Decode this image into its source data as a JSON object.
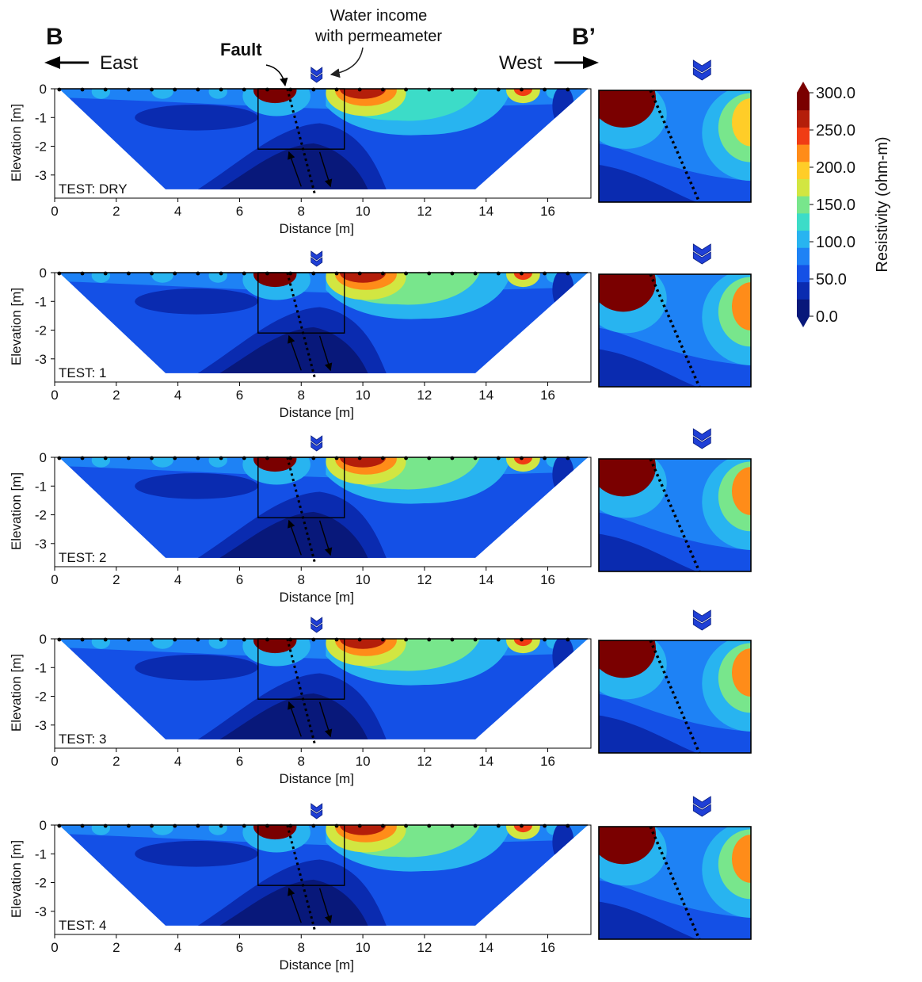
{
  "figure": {
    "section_start_label": "B",
    "section_end_label": "B’",
    "direction_left": "East",
    "direction_right": "West",
    "fault_label": "Fault",
    "water_label_line1": "Water income",
    "water_label_line2": "with permeameter"
  },
  "colorbar": {
    "title": "Resistivity (ohm-m)",
    "tick_labels": [
      "300.0",
      "250.0",
      "200.0",
      "150.0",
      "100.0",
      "50.0",
      "0.0"
    ],
    "colors": [
      "#08187a",
      "#0a2bb0",
      "#1450e6",
      "#1e82f5",
      "#28b4f0",
      "#3cdcc8",
      "#78e68c",
      "#d2e641",
      "#ffcd28",
      "#ff8c19",
      "#f03c14",
      "#b41e0a",
      "#7a0000"
    ]
  },
  "chart_data": {
    "type": "heatmap",
    "quantity": "Electrical resistivity tomography section (ohm-m)",
    "xlabel": "Distance [m]",
    "ylabel": "Elevation [m]",
    "xlim": [
      0,
      17.4
    ],
    "ylim": [
      -3.75,
      0
    ],
    "x_ticks": [
      "0",
      "2",
      "4",
      "6",
      "8",
      "10",
      "12",
      "14",
      "16"
    ],
    "y_ticks": [
      "0",
      "-1",
      "-2",
      "-3"
    ],
    "color_range": [
      0,
      300
    ],
    "zoom_window": {
      "x_range": [
        6.6,
        9.4
      ],
      "y_range": [
        -2.1,
        0
      ]
    },
    "fault_line": {
      "top": [
        7.55,
        0
      ],
      "bottom": [
        8.45,
        -3.7
      ]
    },
    "permeameter_x": 8.5,
    "resistivity_features": [
      {
        "name": "high-resistivity body near fault",
        "x": 7.1,
        "y": -0.2,
        "value": 300
      },
      {
        "name": "high-resistivity body",
        "x": 10.0,
        "y": -0.3,
        "value": 280
      },
      {
        "name": "high-resistivity spot",
        "x": 15.2,
        "y": -0.1,
        "value": 250
      },
      {
        "name": "low-resistivity base",
        "x": 8.5,
        "y": -3.3,
        "value": 20
      }
    ],
    "panels": [
      {
        "test_label": "TEST: DRY"
      },
      {
        "test_label": "TEST: 1"
      },
      {
        "test_label": "TEST: 2"
      },
      {
        "test_label": "TEST: 3"
      },
      {
        "test_label": "TEST: 4"
      }
    ]
  }
}
